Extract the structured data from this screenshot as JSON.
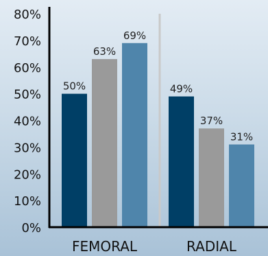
{
  "chart_data": {
    "type": "bar",
    "categories": [
      "FEMORAL",
      "RADIAL"
    ],
    "series": [
      {
        "values": [
          50,
          49
        ],
        "color": "#003f66"
      },
      {
        "values": [
          63,
          37
        ],
        "color": "#9a9a9a"
      },
      {
        "values": [
          69,
          31
        ],
        "color": "#4f85ab"
      }
    ],
    "data_labels": [
      [
        "50%",
        "49%"
      ],
      [
        "63%",
        "37%"
      ],
      [
        "69%",
        "31%"
      ]
    ],
    "yticks": [
      "0%",
      "10%",
      "20%",
      "30%",
      "40%",
      "50%",
      "60%",
      "70%",
      "80%"
    ],
    "ylim": [
      0,
      80
    ],
    "title": "",
    "xlabel": "",
    "ylabel": "",
    "grid": false,
    "separator_color": "#c9c9c9",
    "axis_color": "#000000"
  }
}
